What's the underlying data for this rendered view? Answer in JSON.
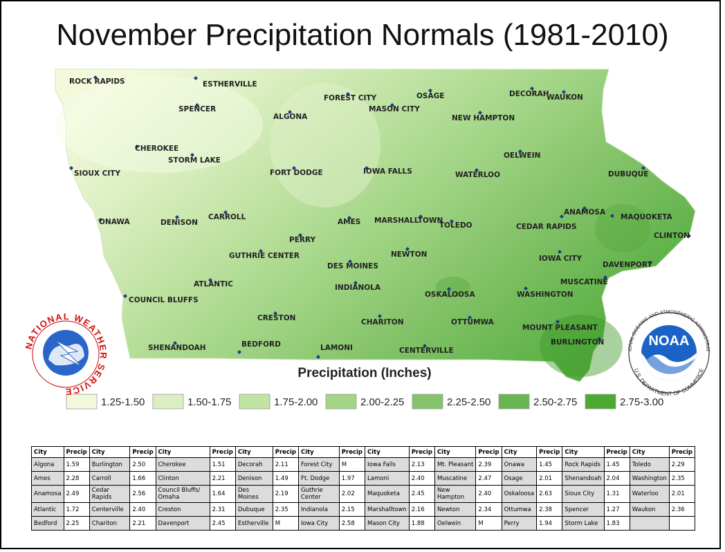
{
  "header": {
    "title": "November Precipitation Normals (1981-2010)"
  },
  "map": {
    "cities": [
      "ROCK RAPIDS",
      "ESTHERVILLE",
      "SPENCER",
      "FOREST CITY",
      "OSAGE",
      "DECORAH",
      "WAUKON",
      "MASON CITY",
      "ALGONA",
      "NEW HAMPTON",
      "CHEROKEE",
      "STORM LAKE",
      "OELWEIN",
      "SIOUX CITY",
      "FORT DODGE",
      "IOWA FALLS",
      "WATERLOO",
      "DUBUQUE",
      "ANAMOSA",
      "MAQUOKETA",
      "CLINTON",
      "ONAWA",
      "DENISON",
      "CARROLL",
      "AMES",
      "MARSHALLTOWN",
      "TOLEDO",
      "CEDAR RAPIDS",
      "PERRY",
      "GUTHRIE CENTER",
      "NEWTON",
      "IOWA CITY",
      "DAVENPORT",
      "DES MOINES",
      "ATLANTIC",
      "INDIANOLA",
      "MUSCATINE",
      "COUNCIL BLUFFS",
      "OSKALOOSA",
      "WASHINGTON",
      "CRESTON",
      "CHARITON",
      "OTTUMWA",
      "MOUNT PLEASANT",
      "SHENANDOAH",
      "BEDFORD",
      "LAMONI",
      "CENTERVILLE",
      "BURLINGTON"
    ]
  },
  "legend": {
    "title": "Precipitation (Inches)",
    "items": [
      {
        "label": "1.25-1.50",
        "color": "#f3fadc"
      },
      {
        "label": "1.50-1.75",
        "color": "#dcefc2"
      },
      {
        "label": "1.75-2.00",
        "color": "#c0e3a3"
      },
      {
        "label": "2.00-2.25",
        "color": "#a3d586"
      },
      {
        "label": "2.25-2.50",
        "color": "#86c46b"
      },
      {
        "label": "2.50-2.75",
        "color": "#68b651"
      },
      {
        "label": "2.75-3.00",
        "color": "#4caa33"
      }
    ]
  },
  "logos": {
    "nws": "NATIONAL WEATHER SERVICE",
    "noaa": "NOAA",
    "noaa_ring_top": "NATIONAL OCEANIC AND ATMOSPHERIC ADMINISTRATION",
    "noaa_ring_bottom": "U.S. DEPARTMENT OF COMMERCE"
  },
  "table": {
    "header": [
      "City",
      "Precip",
      "City",
      "Precip",
      "City",
      "Precip",
      "City",
      "Precip",
      "City",
      "Precip",
      "City",
      "Precip",
      "City",
      "Precip",
      "City",
      "Precip",
      "City",
      "Precip",
      "City",
      "Precip"
    ],
    "rows": [
      [
        "Algona",
        "1.59",
        "Burlington",
        "2.50",
        "Cherokee",
        "1.51",
        "Decorah",
        "2.11",
        "Forest City",
        "M",
        "Iowa Falls",
        "2.13",
        "Mt. Pleasant",
        "2.39",
        "Onawa",
        "1.45",
        "Rock Rapids",
        "1.45",
        "Toledo",
        "2.29"
      ],
      [
        "Ames",
        "2.28",
        "Carroll",
        "1.66",
        "Clinton",
        "2.21",
        "Denison",
        "1.49",
        "Ft. Dodge",
        "1.97",
        "Lamoni",
        "2.40",
        "Muscatine",
        "2.47",
        "Osage",
        "2.01",
        "Shenandoah",
        "2.04",
        "Washington",
        "2.35"
      ],
      [
        "Anamosa",
        "2.49",
        "Cedar Rapids",
        "2.56",
        "Council Bluffs/ Omaha",
        "1.64",
        "Des Moines",
        "2.19",
        "Guthrie Center",
        "2.02",
        "Maquoketa",
        "2.45",
        "New Hampton",
        "2.40",
        "Oskaloosa",
        "2.63",
        "Sioux City",
        "1.31",
        "Waterloo",
        "2.01"
      ],
      [
        "Atlantic",
        "1.72",
        "Centerville",
        "2.40",
        "Creston",
        "2.31",
        "Dubuque",
        "2.35",
        "Indianola",
        "2.15",
        "Marshalltown",
        "2.16",
        "Newton",
        "2.34",
        "Ottumwa",
        "2.38",
        "Spencer",
        "1.27",
        "Waukon",
        "2.36"
      ],
      [
        "Bedford",
        "2.25",
        "Chariton",
        "2.21",
        "Davenport",
        "2.45",
        "Estherville",
        "M",
        "Iowa City",
        "2.58",
        "Mason City",
        "1.88",
        "Oelwein",
        "M",
        "Perry",
        "1.94",
        "Storm Lake",
        "1.83"
      ]
    ]
  }
}
